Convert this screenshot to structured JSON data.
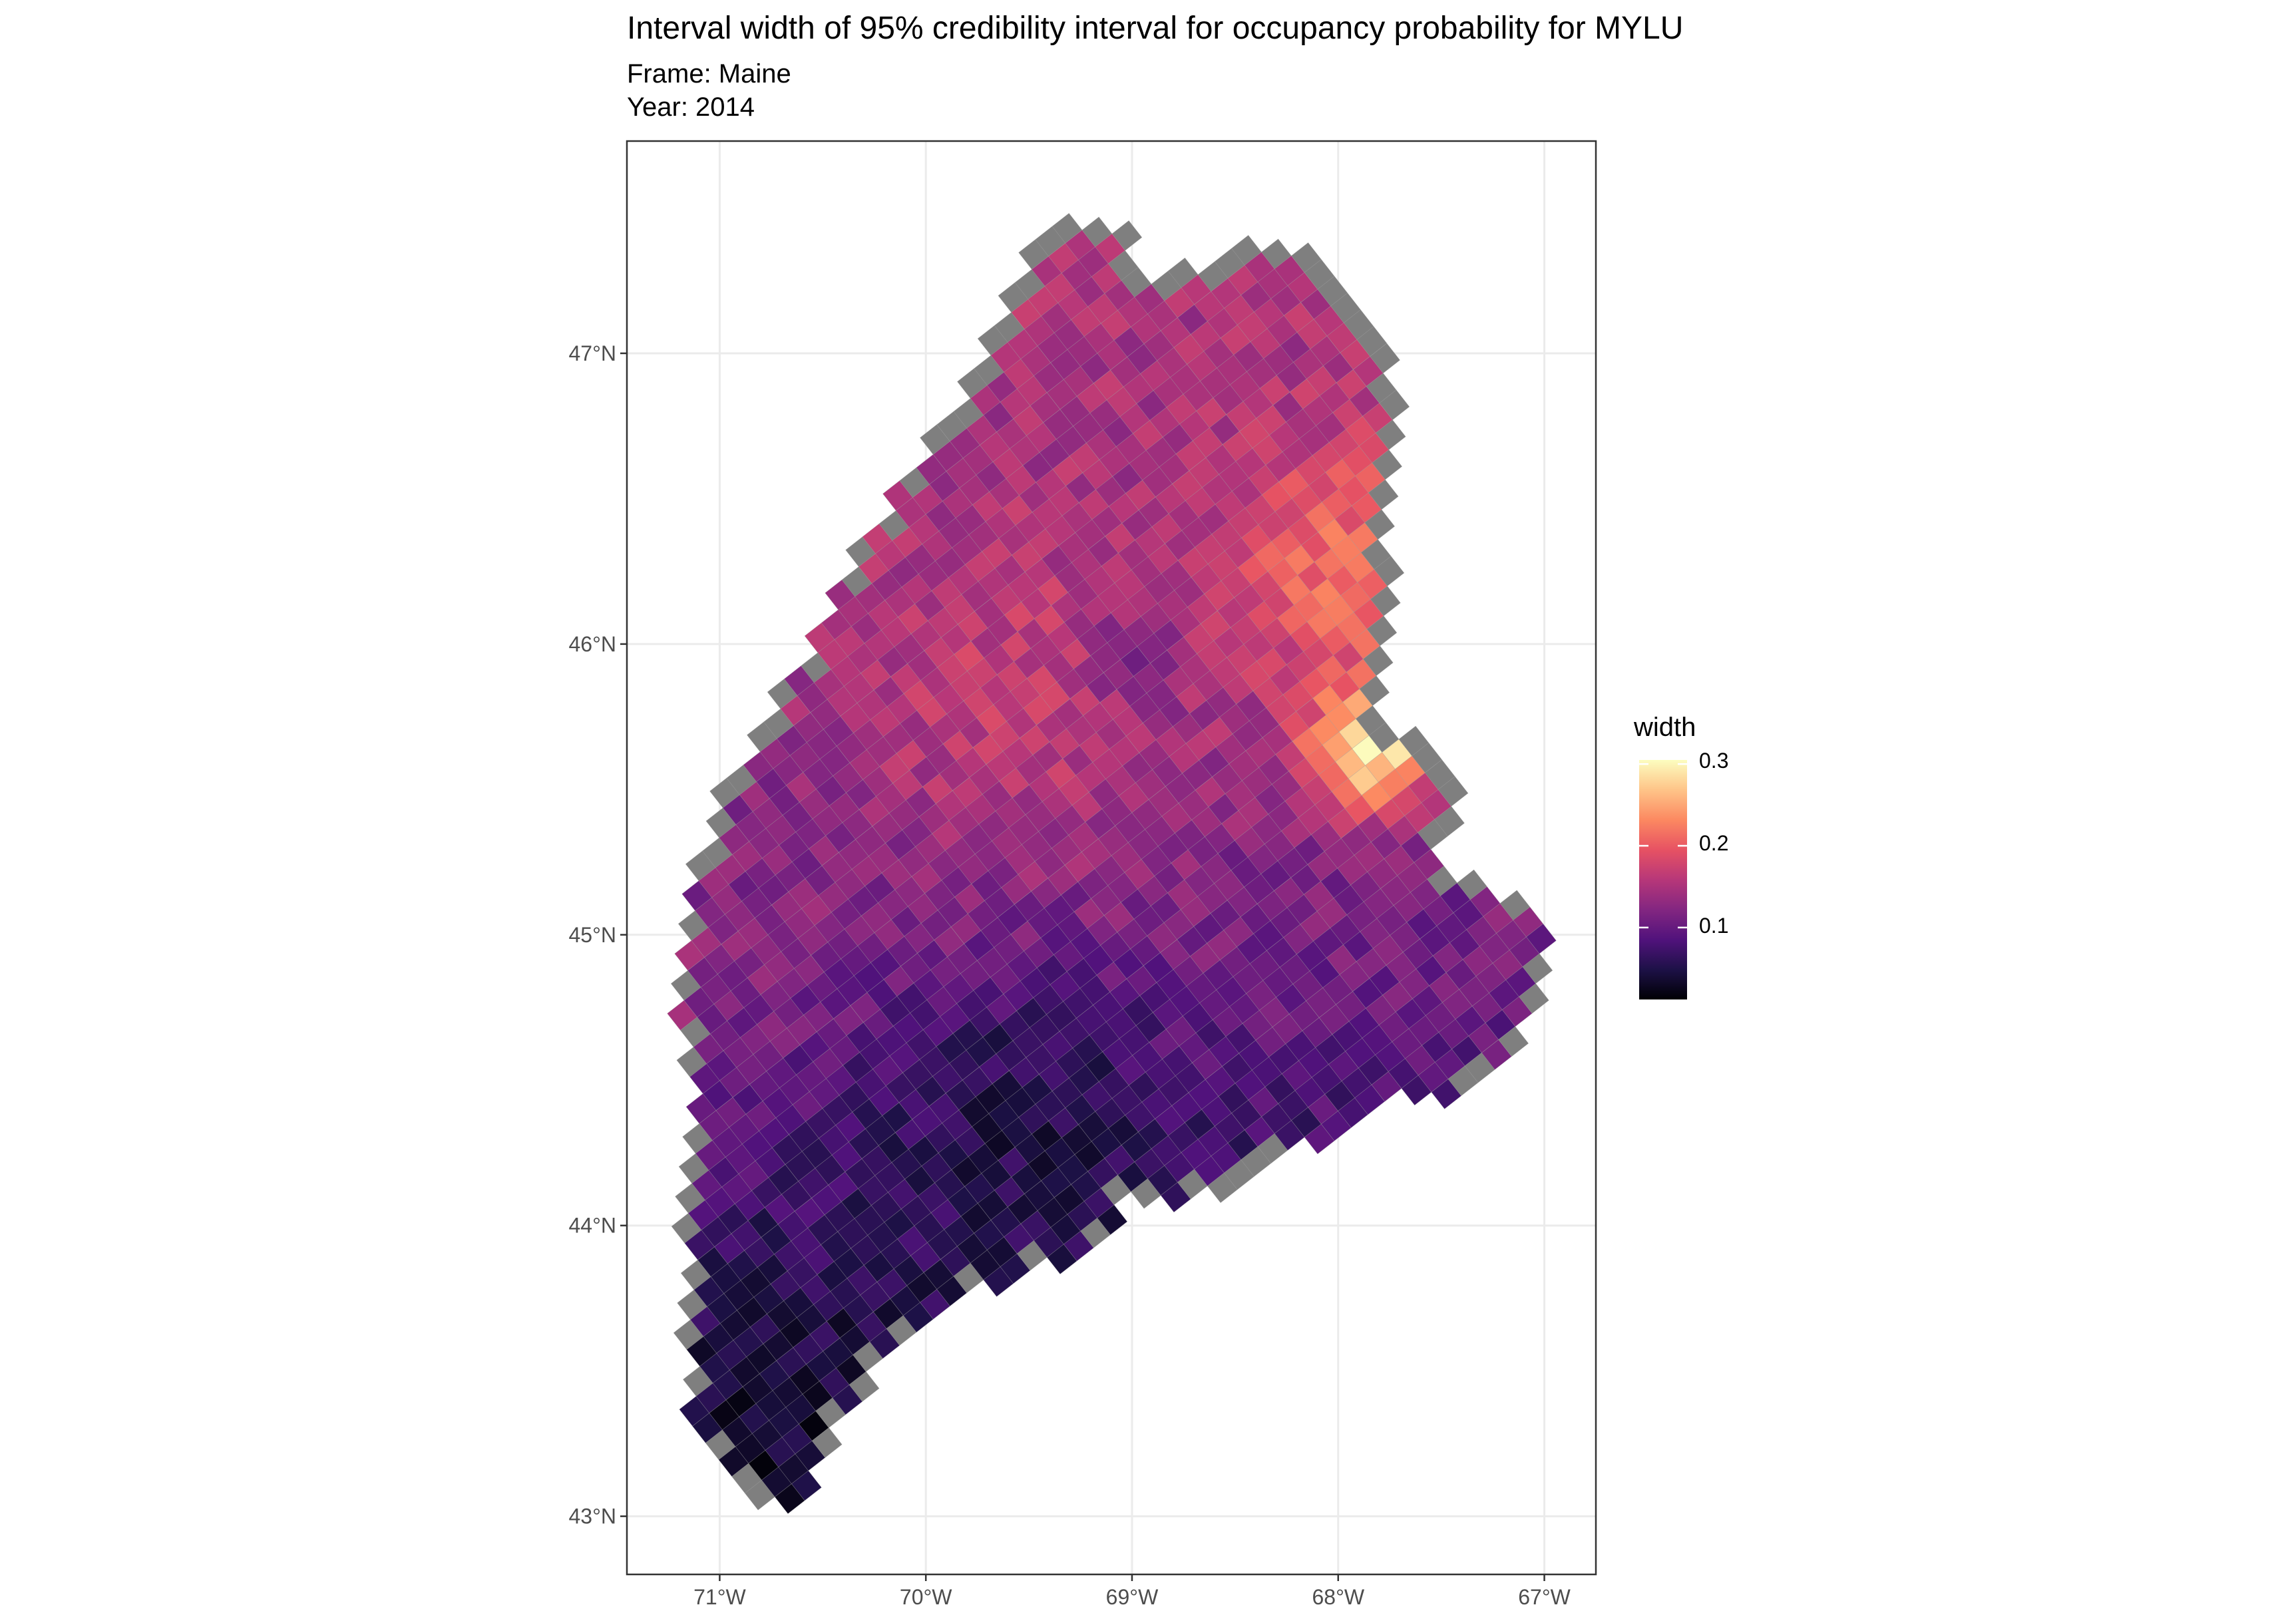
{
  "title": "Interval width of 95% credibility interval for occupancy probability for MYLU",
  "subtitle": {
    "frame": "Frame: Maine",
    "year": "Year: 2014"
  },
  "map": {
    "x_axis": {
      "ticks": [
        -71,
        -70,
        -69,
        -68,
        -67
      ],
      "labels": [
        "71°W",
        "70°W",
        "69°W",
        "68°W",
        "67°W"
      ],
      "range": [
        -71.45,
        -66.75
      ]
    },
    "y_axis": {
      "ticks": [
        43,
        44,
        45,
        46,
        47
      ],
      "labels": [
        "43°N",
        "44°N",
        "45°N",
        "46°N",
        "47°N"
      ],
      "range": [
        42.8,
        47.73
      ]
    },
    "grid": true,
    "missing_color": "#7f7f7f",
    "palette": "magma",
    "grid_rotation_deg": -38
  },
  "legend": {
    "title": "width",
    "labels": [
      "0.3",
      "0.2",
      "0.1"
    ],
    "values": [
      0.3,
      0.2,
      0.1
    ],
    "range": [
      0.012,
      0.305
    ],
    "colors": [
      "#000004",
      "#1d1147",
      "#51127c",
      "#832681",
      "#b73779",
      "#e75263",
      "#fc8961",
      "#fec488",
      "#fcfdbf"
    ],
    "placement": "right"
  }
}
